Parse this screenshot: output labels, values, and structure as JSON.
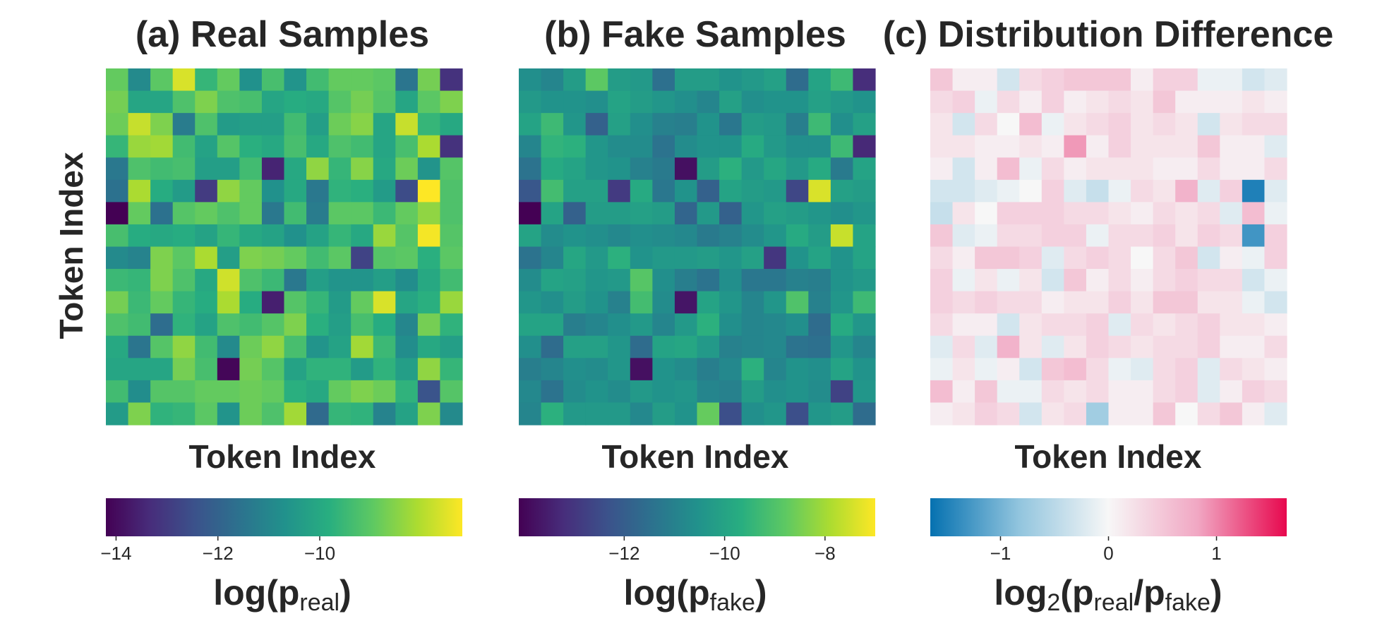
{
  "chart_data": [
    {
      "type": "heatmap",
      "title": "(a) Real Samples",
      "xlabel": "Token Index",
      "ylabel": "Token Index",
      "colormap": "viridis",
      "vmin": -14.2,
      "vmax": -7.2,
      "colorbar": {
        "label_main": "log(p",
        "label_sub": "real",
        "label_close": ")",
        "ticks": [
          -14,
          -12,
          -10
        ],
        "tick_labels": [
          "−14",
          "−12",
          "−10"
        ]
      },
      "z": [
        [
          -8.9,
          -10.9,
          -9.0,
          -7.6,
          -9.6,
          -8.9,
          -10.7,
          -9.3,
          -10.6,
          -9.4,
          -8.9,
          -8.9,
          -9.0,
          -11.5,
          -8.7,
          -13.2
        ],
        [
          -8.7,
          -10.1,
          -10.1,
          -9.2,
          -8.6,
          -9.2,
          -9.3,
          -10.1,
          -9.9,
          -10.0,
          -9.1,
          -8.7,
          -9.1,
          -10.1,
          -9.0,
          -8.6
        ],
        [
          -8.8,
          -7.8,
          -8.6,
          -11.3,
          -9.2,
          -10.4,
          -10.3,
          -10.3,
          -9.4,
          -10.3,
          -8.8,
          -8.5,
          -10.1,
          -7.8,
          -9.6,
          -10.0
        ],
        [
          -9.6,
          -8.3,
          -8.2,
          -9.4,
          -10.2,
          -9.1,
          -9.8,
          -10.0,
          -9.3,
          -10.0,
          -9.2,
          -9.4,
          -10.1,
          -9.3,
          -8.1,
          -13.2
        ],
        [
          -11.4,
          -9.2,
          -9.4,
          -9.3,
          -10.3,
          -10.3,
          -9.4,
          -13.5,
          -10.0,
          -8.4,
          -9.6,
          -8.5,
          -10.0,
          -8.8,
          -10.6,
          -9.1
        ],
        [
          -11.6,
          -8.1,
          -9.9,
          -10.4,
          -13.0,
          -8.4,
          -8.9,
          -10.7,
          -10.0,
          -11.4,
          -9.7,
          -9.8,
          -10.4,
          -12.6,
          -7.2,
          -9.2
        ],
        [
          -14.2,
          -8.9,
          -11.6,
          -9.1,
          -8.9,
          -9.2,
          -8.9,
          -11.4,
          -9.4,
          -11.3,
          -9.0,
          -9.0,
          -9.5,
          -8.9,
          -8.4,
          -9.2
        ],
        [
          -9.3,
          -9.9,
          -10.0,
          -9.9,
          -10.2,
          -9.6,
          -10.0,
          -10.2,
          -10.7,
          -10.2,
          -9.6,
          -10.0,
          -8.3,
          -9.1,
          -7.3,
          -9.1
        ],
        [
          -10.9,
          -11.1,
          -8.6,
          -9.0,
          -8.1,
          -10.3,
          -8.6,
          -8.7,
          -8.9,
          -9.4,
          -9.0,
          -12.8,
          -9.1,
          -9.0,
          -9.8,
          -9.0
        ],
        [
          -9.5,
          -9.6,
          -8.6,
          -9.2,
          -10.0,
          -7.7,
          -9.2,
          -9.5,
          -11.4,
          -10.3,
          -10.6,
          -10.6,
          -10.3,
          -10.8,
          -10.0,
          -9.4
        ],
        [
          -8.7,
          -9.5,
          -8.9,
          -9.6,
          -9.9,
          -8.1,
          -9.9,
          -13.6,
          -9.1,
          -9.6,
          -10.4,
          -8.9,
          -7.6,
          -10.1,
          -9.8,
          -8.3
        ],
        [
          -9.2,
          -9.4,
          -11.7,
          -9.7,
          -10.2,
          -9.2,
          -9.4,
          -9.1,
          -8.6,
          -9.8,
          -10.3,
          -9.3,
          -9.9,
          -11.0,
          -8.7,
          -9.7
        ],
        [
          -10.0,
          -11.5,
          -9.1,
          -8.4,
          -9.4,
          -10.9,
          -8.8,
          -8.4,
          -9.3,
          -10.6,
          -10.2,
          -8.2,
          -9.5,
          -10.8,
          -10.0,
          -10.3
        ],
        [
          -10.1,
          -10.1,
          -10.1,
          -8.7,
          -9.3,
          -14.1,
          -8.7,
          -9.1,
          -10.2,
          -9.7,
          -9.7,
          -10.4,
          -9.7,
          -10.3,
          -8.4,
          -9.6
        ],
        [
          -9.4,
          -10.8,
          -9.1,
          -9.1,
          -8.9,
          -8.9,
          -8.8,
          -8.9,
          -9.8,
          -10.0,
          -8.9,
          -8.6,
          -8.8,
          -9.7,
          -12.4,
          -9.1
        ],
        [
          -10.4,
          -8.6,
          -9.7,
          -9.6,
          -9.0,
          -10.6,
          -8.8,
          -9.2,
          -8.2,
          -11.8,
          -9.6,
          -9.7,
          -11.1,
          -10.2,
          -8.6,
          -10.9
        ]
      ]
    },
    {
      "type": "heatmap",
      "title": "(b) Fake Samples",
      "xlabel": "Token Index",
      "colormap": "viridis",
      "vmin": -14.1,
      "vmax": -7.0,
      "colorbar": {
        "label_main": "log(p",
        "label_sub": "fake",
        "label_close": ")",
        "ticks": [
          -12,
          -10,
          -8
        ],
        "tick_labels": [
          "−12",
          "−10",
          "−8"
        ]
      },
      "z": [
        [
          -10.6,
          -10.9,
          -10.2,
          -8.8,
          -10.2,
          -10.3,
          -11.5,
          -10.2,
          -10.2,
          -10.5,
          -10.3,
          -10.1,
          -11.6,
          -10.0,
          -9.3,
          -13.2
        ],
        [
          -10.3,
          -10.5,
          -10.5,
          -10.6,
          -10.0,
          -10.2,
          -10.4,
          -10.6,
          -10.9,
          -10.1,
          -10.6,
          -10.5,
          -10.5,
          -10.1,
          -10.3,
          -10.5
        ],
        [
          -10.0,
          -9.3,
          -10.4,
          -11.9,
          -10.1,
          -10.6,
          -11.0,
          -11.1,
          -10.5,
          -11.3,
          -10.2,
          -10.3,
          -11.1,
          -9.3,
          -10.6,
          -10.1
        ],
        [
          -10.9,
          -9.5,
          -9.6,
          -10.4,
          -10.7,
          -10.7,
          -11.4,
          -10.7,
          -10.5,
          -10.5,
          -9.8,
          -10.3,
          -10.6,
          -10.6,
          -9.3,
          -13.3
        ],
        [
          -11.4,
          -9.8,
          -10.0,
          -10.4,
          -10.5,
          -11.0,
          -11.2,
          -13.8,
          -10.2,
          -9.6,
          -10.3,
          -9.9,
          -10.3,
          -9.8,
          -11.2,
          -10.0
        ],
        [
          -12.2,
          -9.2,
          -10.1,
          -10.1,
          -12.9,
          -9.8,
          -11.3,
          -10.5,
          -11.9,
          -10.0,
          -10.2,
          -10.3,
          -12.6,
          -7.4,
          -10.1,
          -10.2
        ],
        [
          -14.1,
          -10.0,
          -11.9,
          -10.2,
          -10.2,
          -10.1,
          -10.2,
          -11.8,
          -10.3,
          -11.9,
          -10.4,
          -10.1,
          -10.2,
          -10.4,
          -10.6,
          -10.4
        ],
        [
          -10.0,
          -10.7,
          -10.5,
          -10.6,
          -10.8,
          -10.6,
          -10.7,
          -10.8,
          -11.2,
          -11.0,
          -10.7,
          -10.4,
          -9.8,
          -10.2,
          -7.6,
          -10.0
        ],
        [
          -11.4,
          -10.9,
          -9.9,
          -10.3,
          -9.6,
          -10.5,
          -10.3,
          -10.3,
          -10.2,
          -10.4,
          -10.1,
          -13.0,
          -10.5,
          -10.0,
          -10.5,
          -10.0
        ],
        [
          -10.7,
          -10.0,
          -10.1,
          -10.4,
          -10.3,
          -8.9,
          -10.6,
          -11.1,
          -11.4,
          -10.6,
          -11.3,
          -11.3,
          -11.0,
          -11.1,
          -10.5,
          -10.3
        ],
        [
          -10.4,
          -10.6,
          -10.2,
          -10.5,
          -11.0,
          -9.2,
          -10.7,
          -13.7,
          -10.0,
          -10.4,
          -10.9,
          -10.4,
          -9.0,
          -11.0,
          -10.4,
          -9.3
        ],
        [
          -10.0,
          -10.0,
          -11.1,
          -10.9,
          -10.6,
          -10.3,
          -10.9,
          -10.3,
          -9.6,
          -10.6,
          -10.9,
          -10.8,
          -10.6,
          -11.6,
          -9.8,
          -10.4
        ],
        [
          -10.6,
          -11.6,
          -10.1,
          -10.1,
          -10.4,
          -11.6,
          -10.0,
          -9.9,
          -10.3,
          -11.0,
          -10.9,
          -10.8,
          -11.4,
          -11.5,
          -10.4,
          -10.9
        ],
        [
          -11.1,
          -10.9,
          -10.6,
          -10.7,
          -10.4,
          -13.8,
          -10.5,
          -10.7,
          -11.1,
          -10.8,
          -9.6,
          -10.9,
          -10.5,
          -10.6,
          -10.0,
          -10.5
        ],
        [
          -10.8,
          -11.4,
          -10.7,
          -10.5,
          -10.7,
          -10.3,
          -10.5,
          -10.4,
          -10.9,
          -11.0,
          -10.2,
          -10.6,
          -10.5,
          -10.7,
          -12.7,
          -10.4
        ],
        [
          -10.9,
          -9.6,
          -10.3,
          -10.3,
          -10.3,
          -10.8,
          -10.2,
          -10.5,
          -8.7,
          -12.4,
          -10.6,
          -10.4,
          -12.4,
          -10.4,
          -10.2,
          -11.6
        ]
      ]
    },
    {
      "type": "heatmap",
      "title": "(c) Distribution Difference",
      "xlabel": "Token Index",
      "colormap": "diverging blue-white-pink",
      "vmin": -1.65,
      "vmax": 1.65,
      "colorbar": {
        "label_main": "log",
        "label_base": "2",
        "label_open": "(p",
        "label_sub1": "real",
        "label_mid": "/p",
        "label_sub2": "fake",
        "label_close": ")",
        "ticks": [
          -1,
          0,
          1
        ],
        "tick_labels": [
          "−1",
          "0",
          "1"
        ]
      },
      "z": [
        [
          0.5,
          0.1,
          0.1,
          -0.3,
          0.3,
          0.4,
          0.5,
          0.5,
          0.5,
          0.1,
          0.4,
          0.4,
          -0.1,
          -0.1,
          -0.3,
          -0.2
        ],
        [
          0.3,
          0.4,
          -0.1,
          0.3,
          0.1,
          0.4,
          0.1,
          0.2,
          0.3,
          0.2,
          0.5,
          0.1,
          0.1,
          0.1,
          0.2,
          0.1
        ],
        [
          0.2,
          -0.3,
          0.3,
          0.0,
          0.6,
          -0.1,
          0.2,
          0.3,
          0.4,
          0.2,
          0.3,
          0.2,
          -0.3,
          0.2,
          0.3,
          0.3
        ],
        [
          0.2,
          0.2,
          0.1,
          0.1,
          0.2,
          0.1,
          0.9,
          0.1,
          0.4,
          0.2,
          0.2,
          0.2,
          0.5,
          0.1,
          0.1,
          -0.2
        ],
        [
          0.1,
          -0.3,
          0.1,
          0.6,
          -0.1,
          0.3,
          0.1,
          0.2,
          0.2,
          0.2,
          0.1,
          0.1,
          0.3,
          0.1,
          0.1,
          0.3
        ],
        [
          -0.3,
          -0.3,
          -0.2,
          -0.1,
          0.0,
          0.4,
          -0.2,
          -0.4,
          -0.1,
          0.3,
          0.2,
          0.7,
          -0.2,
          0.4,
          -1.5,
          -0.2
        ],
        [
          -0.4,
          0.2,
          0.0,
          0.4,
          0.4,
          0.4,
          0.3,
          0.3,
          0.2,
          0.1,
          0.3,
          0.2,
          0.3,
          -0.2,
          0.6,
          -0.1
        ],
        [
          0.5,
          -0.2,
          -0.1,
          0.3,
          0.3,
          0.4,
          0.4,
          -0.1,
          0.3,
          0.3,
          0.4,
          0.2,
          0.4,
          0.3,
          -1.3,
          0.4
        ],
        [
          0.3,
          0.1,
          0.5,
          0.5,
          0.4,
          -0.2,
          0.3,
          0.4,
          0.3,
          0.0,
          0.3,
          0.5,
          -0.3,
          0.1,
          -0.1,
          0.4
        ],
        [
          0.4,
          -0.1,
          0.2,
          -0.1,
          0.2,
          -0.3,
          0.5,
          0.1,
          0.3,
          0.1,
          0.3,
          0.4,
          0.3,
          0.3,
          -0.3,
          -0.1
        ],
        [
          0.4,
          0.3,
          0.4,
          0.3,
          0.3,
          0.1,
          0.2,
          0.2,
          0.4,
          0.2,
          0.5,
          0.5,
          0.2,
          0.2,
          -0.1,
          -0.3
        ],
        [
          0.3,
          0.1,
          0.1,
          -0.3,
          0.2,
          0.3,
          0.3,
          0.4,
          -0.2,
          0.3,
          0.2,
          0.3,
          0.4,
          0.2,
          0.2,
          0.1
        ],
        [
          -0.2,
          0.3,
          -0.2,
          0.7,
          0.2,
          -0.2,
          0.2,
          0.4,
          0.3,
          0.2,
          0.3,
          0.3,
          0.4,
          0.1,
          0.1,
          0.3
        ],
        [
          -0.1,
          0.2,
          -0.1,
          0.1,
          -0.3,
          0.5,
          0.6,
          0.3,
          -0.1,
          -0.2,
          0.3,
          0.4,
          -0.2,
          0.3,
          0.2,
          0.1
        ],
        [
          0.6,
          0.1,
          0.5,
          -0.1,
          -0.1,
          0.3,
          0.2,
          0.3,
          0.1,
          0.1,
          0.3,
          0.4,
          -0.2,
          0.1,
          0.4,
          0.3
        ],
        [
          0.1,
          0.2,
          0.4,
          0.3,
          -0.3,
          0.2,
          0.3,
          -0.7,
          0.1,
          0.1,
          0.5,
          0.0,
          0.3,
          0.5,
          0.1,
          -0.2
        ]
      ]
    }
  ]
}
